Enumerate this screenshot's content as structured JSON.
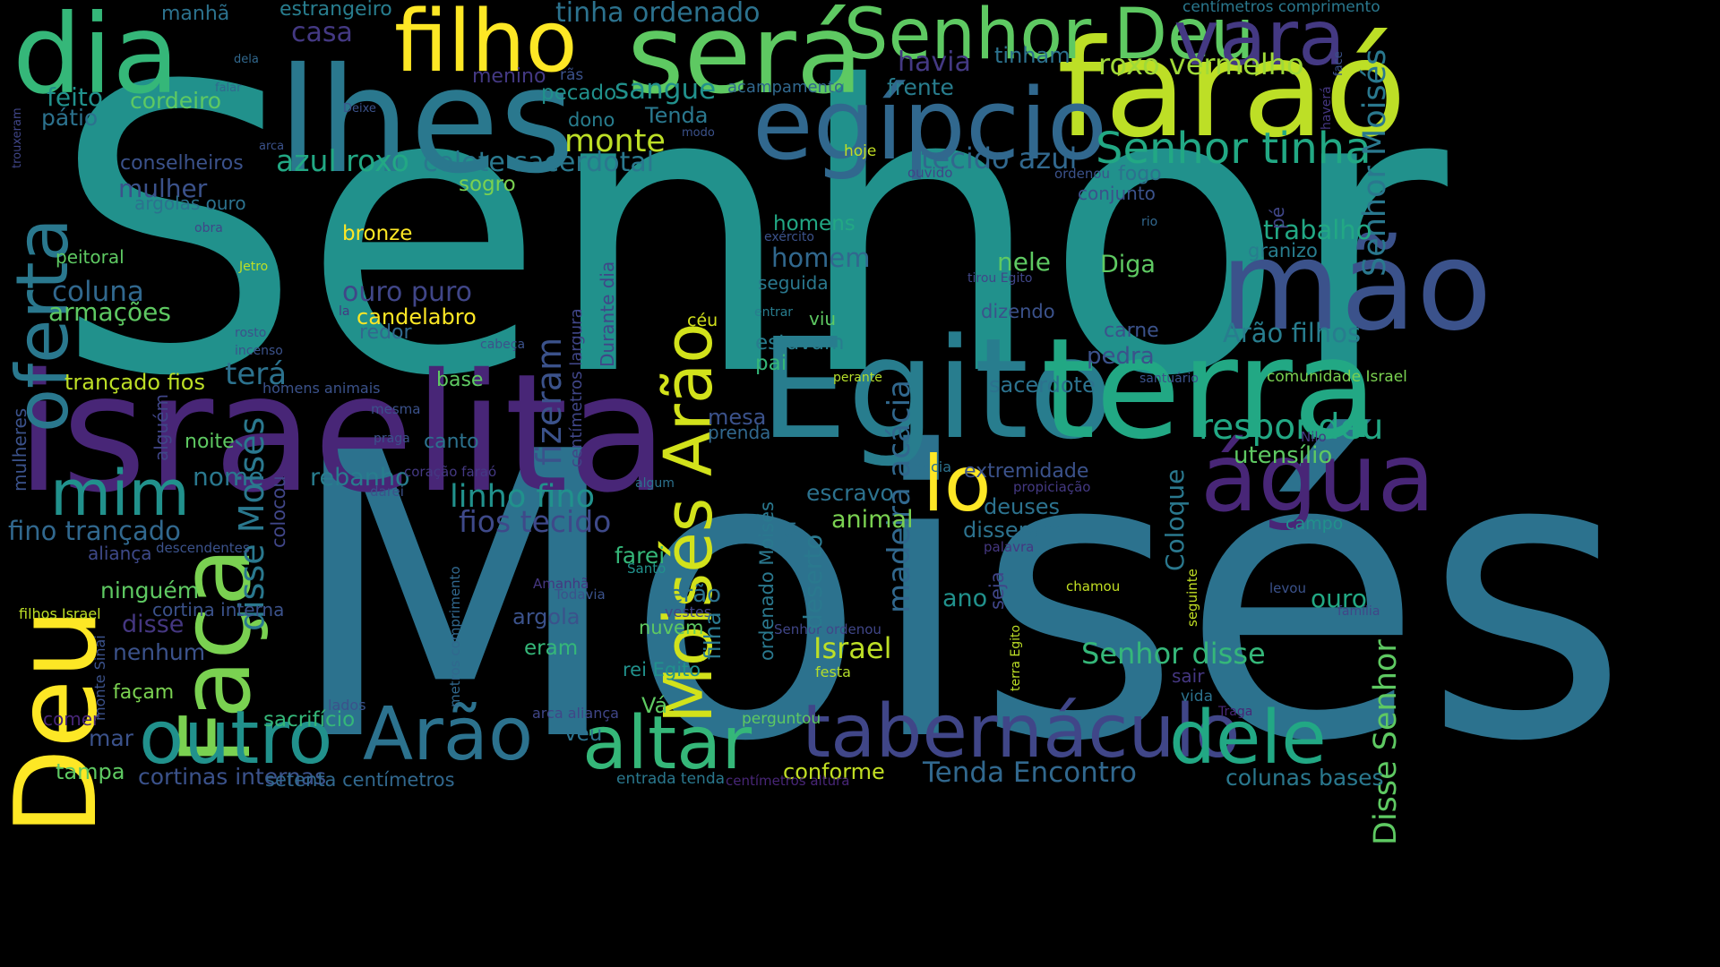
{
  "words": [
    {
      "text": "Senhor",
      "color": "#21918c"
    },
    {
      "text": "Moisés",
      "color": "#2c728e"
    },
    {
      "text": "israelita",
      "color": "#482677"
    },
    {
      "text": "Egito",
      "color": "#287d8e"
    },
    {
      "text": "terra",
      "color": "#22a884"
    },
    {
      "text": "lhes",
      "color": "#2a788e"
    },
    {
      "text": "dia",
      "color": "#35b779"
    },
    {
      "text": "faraó",
      "color": "#bddf26"
    },
    {
      "text": "será",
      "color": "#5ec962"
    },
    {
      "text": "filho",
      "color": "#fde725"
    },
    {
      "text": "Senhor Deu",
      "color": "#5ec962"
    },
    {
      "text": "vara",
      "color": "#443983"
    },
    {
      "text": "egípcio",
      "color": "#31688e"
    },
    {
      "text": "mão",
      "color": "#3b528b"
    },
    {
      "text": "Faça",
      "color": "#7ad151"
    },
    {
      "text": "Deu",
      "color": "#fde725"
    },
    {
      "text": "oferta",
      "color": "#2a788e"
    },
    {
      "text": "água",
      "color": "#482677"
    },
    {
      "text": "mim",
      "color": "#21918c"
    },
    {
      "text": "lo",
      "color": "#fde725"
    },
    {
      "text": "outro",
      "color": "#21918c"
    },
    {
      "text": "Arão",
      "color": "#2c728e"
    },
    {
      "text": "altar",
      "color": "#35b779"
    },
    {
      "text": "tabernáculo",
      "color": "#404688"
    },
    {
      "text": "dele",
      "color": "#22a884"
    },
    {
      "text": "Moisés Arão",
      "color": "#d2e21b"
    },
    {
      "text": "disse Moisés",
      "color": "#2a788e"
    },
    {
      "text": "madeira acácia",
      "color": "#31688e"
    },
    {
      "text": "fizeram",
      "color": "#3b528b"
    },
    {
      "text": "Senhor tinha",
      "color": "#22a884"
    },
    {
      "text": "respondeu",
      "color": "#22a884"
    },
    {
      "text": "Senhor Moisés",
      "color": "#2a788e"
    },
    {
      "text": "Disse Senhor",
      "color": "#5ec962"
    },
    {
      "text": "tinha ordenado",
      "color": "#2c728e"
    },
    {
      "text": "casa",
      "color": "#443983"
    },
    {
      "text": "havia",
      "color": "#443983"
    },
    {
      "text": "tinham",
      "color": "#2c728e"
    },
    {
      "text": "roxo vermelho",
      "color": "#a0da39"
    },
    {
      "text": "estrangeiro",
      "color": "#287d8e"
    },
    {
      "text": "manhã",
      "color": "#2c728e"
    },
    {
      "text": "centímetros comprimento",
      "color": "#2a788e"
    },
    {
      "text": "menino",
      "color": "#443983"
    },
    {
      "text": "rãs",
      "color": "#3b528b"
    },
    {
      "text": "feito",
      "color": "#21918c"
    },
    {
      "text": "cordeiro",
      "color": "#5ec962"
    },
    {
      "text": "sangue",
      "color": "#21918c"
    },
    {
      "text": "pecado",
      "color": "#21918c"
    },
    {
      "text": "acampamento",
      "color": "#31688e"
    },
    {
      "text": "frente",
      "color": "#287d8e"
    },
    {
      "text": "pátio",
      "color": "#2c728e"
    },
    {
      "text": "dono",
      "color": "#287d8e"
    },
    {
      "text": "Tenda",
      "color": "#2a788e"
    },
    {
      "text": "monte",
      "color": "#bddf26"
    },
    {
      "text": "conselheiros",
      "color": "#3b528b"
    },
    {
      "text": "azul roxo",
      "color": "#22a884"
    },
    {
      "text": "colete sacerdotal",
      "color": "#2a788e"
    },
    {
      "text": "tecido azul",
      "color": "#31688e"
    },
    {
      "text": "fogo",
      "color": "#2c728e"
    },
    {
      "text": "hoje",
      "color": "#c2df23"
    },
    {
      "text": "mulher",
      "color": "#3b528b"
    },
    {
      "text": "sogro",
      "color": "#7ad151"
    },
    {
      "text": "argolas ouro",
      "color": "#2c728e"
    },
    {
      "text": "conjunto",
      "color": "#3b528b"
    },
    {
      "text": "bronze",
      "color": "#fde725"
    },
    {
      "text": "homens",
      "color": "#22a884"
    },
    {
      "text": "trabalho",
      "color": "#22a884"
    },
    {
      "text": "peitoral",
      "color": "#5ec962"
    },
    {
      "text": "homem",
      "color": "#31688e"
    },
    {
      "text": "nele",
      "color": "#5ec962"
    },
    {
      "text": "granizo",
      "color": "#287d8e"
    },
    {
      "text": "coluna",
      "color": "#31688e"
    },
    {
      "text": "seguida",
      "color": "#2a788e"
    },
    {
      "text": "Diga",
      "color": "#5ec962"
    },
    {
      "text": "ouro puro",
      "color": "#404688"
    },
    {
      "text": "armações",
      "color": "#5ec962"
    },
    {
      "text": "candelabro",
      "color": "#fde725"
    },
    {
      "text": "dizendo",
      "color": "#3b528b"
    },
    {
      "text": "redor",
      "color": "#31688e"
    },
    {
      "text": "viu",
      "color": "#5ec962"
    },
    {
      "text": "céu",
      "color": "#d2e21b"
    },
    {
      "text": "carne",
      "color": "#3b528b"
    },
    {
      "text": "Arão filhos",
      "color": "#287d8e"
    },
    {
      "text": "estavam",
      "color": "#287d8e"
    },
    {
      "text": "pedra",
      "color": "#3b528b"
    },
    {
      "text": "terá",
      "color": "#2c728e"
    },
    {
      "text": "pai",
      "color": "#35b779"
    },
    {
      "text": "trançado fios",
      "color": "#bddf26"
    },
    {
      "text": "base",
      "color": "#5ec962"
    },
    {
      "text": "sacerdote",
      "color": "#2c728e"
    },
    {
      "text": "comunidade Israel",
      "color": "#7ad151"
    },
    {
      "text": "mesa",
      "color": "#3b528b"
    },
    {
      "text": "prenda",
      "color": "#31688e"
    },
    {
      "text": "noite",
      "color": "#5ec962"
    },
    {
      "text": "canto",
      "color": "#2c728e"
    },
    {
      "text": "utensílio",
      "color": "#5ec962"
    },
    {
      "text": "extremidade",
      "color": "#3b528b"
    },
    {
      "text": "nome",
      "color": "#2a788e"
    },
    {
      "text": "rebanho",
      "color": "#287d8e"
    },
    {
      "text": "linho fino",
      "color": "#21918c"
    },
    {
      "text": "escravo",
      "color": "#2c728e"
    },
    {
      "text": "deuses",
      "color": "#2c728e"
    },
    {
      "text": "fios tecido",
      "color": "#3e4989"
    },
    {
      "text": "animal",
      "color": "#7ad151"
    },
    {
      "text": "disseram",
      "color": "#2c728e"
    },
    {
      "text": "fino trançado",
      "color": "#31688e"
    },
    {
      "text": "aliança",
      "color": "#3e4989"
    },
    {
      "text": "farei",
      "color": "#35b779"
    },
    {
      "text": "campo",
      "color": "#21918c"
    },
    {
      "text": "ninguém",
      "color": "#5ec962"
    },
    {
      "text": "cortina interna",
      "color": "#3b528b"
    },
    {
      "text": "serão",
      "color": "#2c728e"
    },
    {
      "text": "ano",
      "color": "#21918c"
    },
    {
      "text": "ouro",
      "color": "#22a884"
    },
    {
      "text": "disse",
      "color": "#453781"
    },
    {
      "text": "argola",
      "color": "#3b528b"
    },
    {
      "text": "nuvem",
      "color": "#5ec962"
    },
    {
      "text": "Israel",
      "color": "#bddf26"
    },
    {
      "text": "nenhum",
      "color": "#3b528b"
    },
    {
      "text": "eram",
      "color": "#35b779"
    },
    {
      "text": "Senhor disse",
      "color": "#35b779"
    },
    {
      "text": "façam",
      "color": "#7ad151"
    },
    {
      "text": "rei Egito",
      "color": "#21918c"
    },
    {
      "text": "festa",
      "color": "#b5de2b"
    },
    {
      "text": "sair",
      "color": "#453781"
    },
    {
      "text": "vida",
      "color": "#2c728e"
    },
    {
      "text": "Vá",
      "color": "#5ec962"
    },
    {
      "text": "sacrifício",
      "color": "#35b779"
    },
    {
      "text": "mar",
      "color": "#3b528b"
    },
    {
      "text": "véu",
      "color": "#2c728e"
    },
    {
      "text": "perguntou",
      "color": "#5ec962"
    },
    {
      "text": "tampa",
      "color": "#5ec962"
    },
    {
      "text": "cortinas internas",
      "color": "#3b528b"
    },
    {
      "text": "Tenda Encontro",
      "color": "#31688e"
    },
    {
      "text": "conforme",
      "color": "#c2df23"
    },
    {
      "text": "colunas bases",
      "color": "#2a788e"
    },
    {
      "text": "setenta centímetros",
      "color": "#31688e"
    },
    {
      "text": "entrada tenda",
      "color": "#2a788e"
    },
    {
      "text": "centímetros altura",
      "color": "#482677"
    },
    {
      "text": "comer",
      "color": "#482677"
    },
    {
      "text": "lados",
      "color": "#3b528b"
    },
    {
      "text": "arca aliança",
      "color": "#404688"
    },
    {
      "text": "Traga",
      "color": "#482677"
    },
    {
      "text": "monte Sinai",
      "color": "#3b528b"
    },
    {
      "text": "filhos Israel",
      "color": "#bddf26"
    },
    {
      "text": "Santo",
      "color": "#21918c"
    },
    {
      "text": "Amanhã",
      "color": "#453781"
    },
    {
      "text": "Todavia",
      "color": "#3b528b"
    },
    {
      "text": "vestes",
      "color": "#404688"
    },
    {
      "text": "chamou",
      "color": "#c2df23"
    },
    {
      "text": "levou",
      "color": "#3b528b"
    },
    {
      "text": "família",
      "color": "#404688"
    },
    {
      "text": "Senhor ordenou",
      "color": "#404688"
    },
    {
      "text": "descendentes",
      "color": "#3b528b"
    },
    {
      "text": "coração faraó",
      "color": "#443983"
    },
    {
      "text": "darei",
      "color": "#3b528b"
    },
    {
      "text": "algum",
      "color": "#2c728e"
    },
    {
      "text": "bacia",
      "color": "#2c728e"
    },
    {
      "text": "propiciação",
      "color": "#443983"
    },
    {
      "text": "palavra",
      "color": "#453781"
    },
    {
      "text": "mesma",
      "color": "#3b528b"
    },
    {
      "text": "praga",
      "color": "#3b528b"
    },
    {
      "text": "homens animais",
      "color": "#3b528b"
    },
    {
      "text": "perante",
      "color": "#b5de2b"
    },
    {
      "text": "santuário",
      "color": "#3b528b"
    },
    {
      "text": "Nilo",
      "color": "#453781"
    },
    {
      "text": "entrar",
      "color": "#287d8e"
    },
    {
      "text": "cabeça",
      "color": "#3b528b"
    },
    {
      "text": "rosto",
      "color": "#3b528b"
    },
    {
      "text": "incenso",
      "color": "#3b528b"
    },
    {
      "text": "la",
      "color": "#443983"
    },
    {
      "text": "tirou Egito",
      "color": "#404688"
    },
    {
      "text": "rio",
      "color": "#31688e"
    },
    {
      "text": "exército",
      "color": "#3b528b"
    },
    {
      "text": "obra",
      "color": "#404688"
    },
    {
      "text": "Jetro",
      "color": "#bddf26"
    },
    {
      "text": "ouvido",
      "color": "#404688"
    },
    {
      "text": "ordenou",
      "color": "#3b528b"
    },
    {
      "text": "modo",
      "color": "#3b528b"
    },
    {
      "text": "arca",
      "color": "#3b528b"
    },
    {
      "text": "falar",
      "color": "#31688e"
    },
    {
      "text": "dela",
      "color": "#31688e"
    },
    {
      "text": "Deixe",
      "color": "#3b528b"
    },
    {
      "text": "trouxeram",
      "color": "#404688"
    },
    {
      "text": "face",
      "color": "#3b528b"
    },
    {
      "text": "haverá",
      "color": "#453781"
    },
    {
      "text": "pé",
      "color": "#404688"
    },
    {
      "text": "mulheres",
      "color": "#3b528b"
    },
    {
      "text": "alguém",
      "color": "#404688"
    },
    {
      "text": "colocou",
      "color": "#404688"
    },
    {
      "text": "Durante dia",
      "color": "#404688"
    },
    {
      "text": "centímetros largura",
      "color": "#404688"
    },
    {
      "text": "ordenado Moisés",
      "color": "#2a788e"
    },
    {
      "text": "boi",
      "color": "#2c728e"
    },
    {
      "text": "deserto",
      "color": "#2a788e"
    },
    {
      "text": "filha",
      "color": "#2a788e"
    },
    {
      "text": "metros comprimento",
      "color": "#31688e"
    },
    {
      "text": "seja",
      "color": "#404688"
    },
    {
      "text": "Coloque",
      "color": "#2a788e"
    },
    {
      "text": "terra Egito",
      "color": "#bddf26"
    },
    {
      "text": "seguinte",
      "color": "#c2df23"
    }
  ]
}
